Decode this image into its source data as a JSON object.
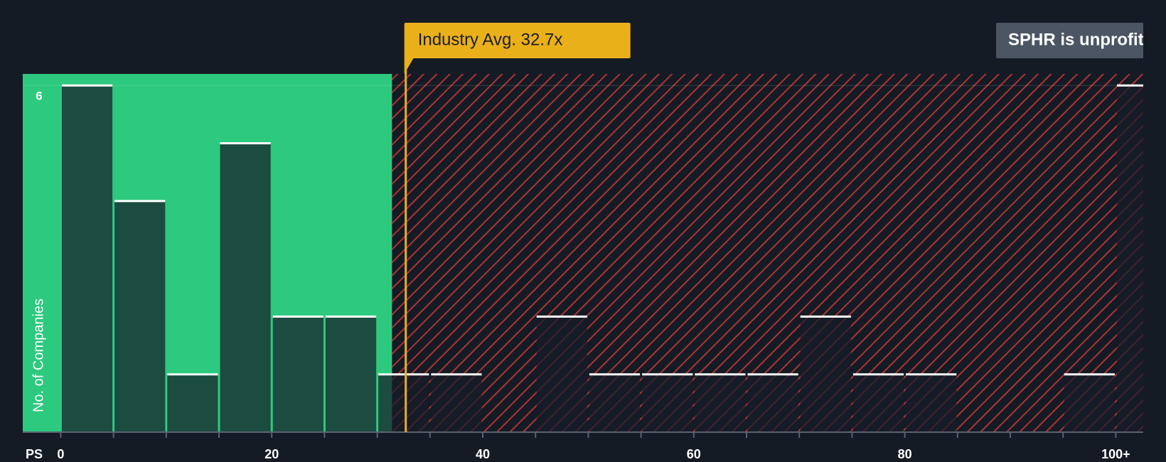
{
  "chart_data": {
    "type": "histogram",
    "x_label": "PS",
    "y_label": "No. of Companies",
    "bins": [
      0,
      5,
      10,
      15,
      20,
      25,
      30,
      35,
      40,
      45,
      50,
      55,
      60,
      65,
      70,
      75,
      80,
      85,
      90,
      95,
      100,
      105
    ],
    "values": [
      6,
      4,
      1,
      5,
      2,
      2,
      1,
      1,
      0,
      2,
      1,
      1,
      1,
      1,
      2,
      1,
      1,
      0,
      0,
      1,
      6
    ],
    "xlim": [
      -3.6,
      102.6
    ],
    "xticks": [
      0,
      20,
      40,
      60,
      80,
      {
        "value": 100,
        "label": "100+"
      }
    ],
    "ylim": [
      0,
      6.2
    ],
    "yticks": [
      6
    ],
    "fair_range_end": 31.4,
    "industry_avg": {
      "value": 32.7,
      "label": "Industry Avg. 32.7x"
    },
    "company_note": "SPHR is unprofit",
    "fair_color": "#2dc97e",
    "hatch_color": "#c8373a",
    "avg_color": "#e9b01a",
    "note_color": "#4b5563"
  }
}
